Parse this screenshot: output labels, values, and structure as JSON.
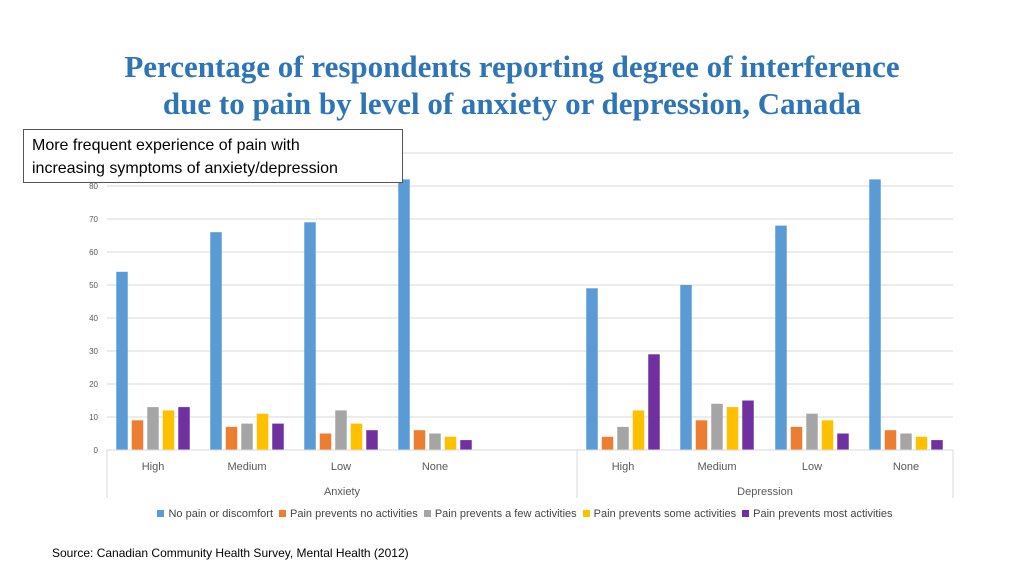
{
  "title_line1": "Percentage of respondents reporting degree of interference",
  "title_line2": "due to pain by level of anxiety or depression, Canada",
  "callout_line1": "More frequent experience of pain with",
  "callout_line2": "increasing symptoms of anxiety/depression",
  "source": "Source: Canadian Community Health Survey, Mental Health (2012)",
  "chart_data": {
    "type": "bar",
    "title": "Percentage of respondents reporting degree of interference due to pain by level of anxiety or depression, Canada",
    "ylim": [
      0,
      90
    ],
    "yticks": [
      0,
      10,
      20,
      30,
      40,
      50,
      60,
      70,
      80
    ],
    "grid": true,
    "legend_position": "bottom",
    "groups": [
      {
        "name": "Anxiety",
        "categories": [
          "High",
          "Medium",
          "Low",
          "None"
        ]
      },
      {
        "name": "Depression",
        "categories": [
          "High",
          "Medium",
          "Low",
          "None"
        ]
      }
    ],
    "series": [
      {
        "name": "No pain or discomfort",
        "color": "#5b9bd5",
        "values": [
          54,
          66,
          69,
          82,
          49,
          50,
          68,
          82
        ]
      },
      {
        "name": "Pain prevents no activities",
        "color": "#ed7d31",
        "values": [
          9,
          7,
          5,
          6,
          4,
          9,
          7,
          6
        ]
      },
      {
        "name": "Pain prevents a few activities",
        "color": "#a5a5a5",
        "values": [
          13,
          8,
          12,
          5,
          7,
          14,
          11,
          5
        ]
      },
      {
        "name": "Pain prevents some activities",
        "color": "#ffc000",
        "values": [
          12,
          11,
          8,
          4,
          12,
          13,
          9,
          4
        ]
      },
      {
        "name": "Pain prevents most activities",
        "color": "#7030a0",
        "values": [
          13,
          8,
          6,
          3,
          29,
          15,
          5,
          3
        ]
      }
    ]
  }
}
